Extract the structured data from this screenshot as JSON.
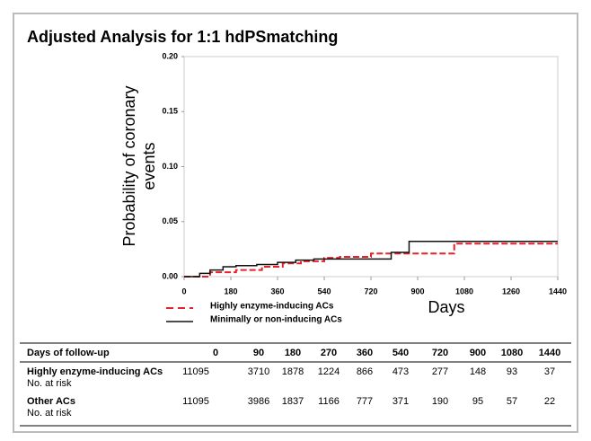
{
  "chart_data": {
    "type": "step",
    "title": "Adjusted Analysis for 1:1 hdPSmatching",
    "ylabel": "Probability of coronary events",
    "xlabel": "Days",
    "x": [
      0,
      60,
      100,
      150,
      200,
      280,
      300,
      360,
      380,
      430,
      450,
      500,
      540,
      600,
      720,
      798,
      867,
      1041,
      1440
    ],
    "series": [
      {
        "name": "Highly enzyme-inducing ACs",
        "color": "#e8202a",
        "dash": true,
        "values": [
          0,
          0,
          0.004,
          0.004,
          0.006,
          0.006,
          0.009,
          0.009,
          0.012,
          0.012,
          0.014,
          0.014,
          0.017,
          0.018,
          0.021,
          0.021,
          0.021,
          0.03,
          0.03
        ]
      },
      {
        "name": "Minimally or non-inducing ACs",
        "color": "#111111",
        "dash": false,
        "values": [
          0,
          0.003,
          0.006,
          0.009,
          0.01,
          0.011,
          0.011,
          0.013,
          0.013,
          0.015,
          0.015,
          0.016,
          0.016,
          0.016,
          0.016,
          0.022,
          0.032,
          0.032,
          0.032
        ]
      }
    ],
    "xlim": [
      0,
      1440
    ],
    "xticks": [
      0,
      180,
      360,
      540,
      720,
      900,
      1080,
      1260,
      1440
    ],
    "ylim": [
      0,
      0.2
    ],
    "yticks": [
      {
        "value": 0,
        "label": "0.00"
      },
      {
        "value": 0.05,
        "label": "0.05"
      },
      {
        "value": 0.1,
        "label": "0.10"
      },
      {
        "value": 0.15,
        "label": "0.15"
      },
      {
        "value": 0.2,
        "label": "0.20"
      }
    ]
  },
  "table": {
    "header": [
      "Days of follow-up",
      "0",
      "90",
      "180",
      "270",
      "360",
      "540",
      "720",
      "900",
      "1080",
      "1440"
    ],
    "rows": [
      {
        "label": "Highly enzyme-inducing ACs",
        "sublabel": "No. at risk",
        "cells": [
          "11095",
          "3710",
          "1878",
          "1224",
          "866",
          "473",
          "277",
          "148",
          "93",
          "37"
        ]
      },
      {
        "label": "Other ACs",
        "sublabel": "No. at risk",
        "cells": [
          "11095",
          "3986",
          "1837",
          "1166",
          "777",
          "371",
          "190",
          "95",
          "57",
          "22"
        ]
      }
    ]
  }
}
